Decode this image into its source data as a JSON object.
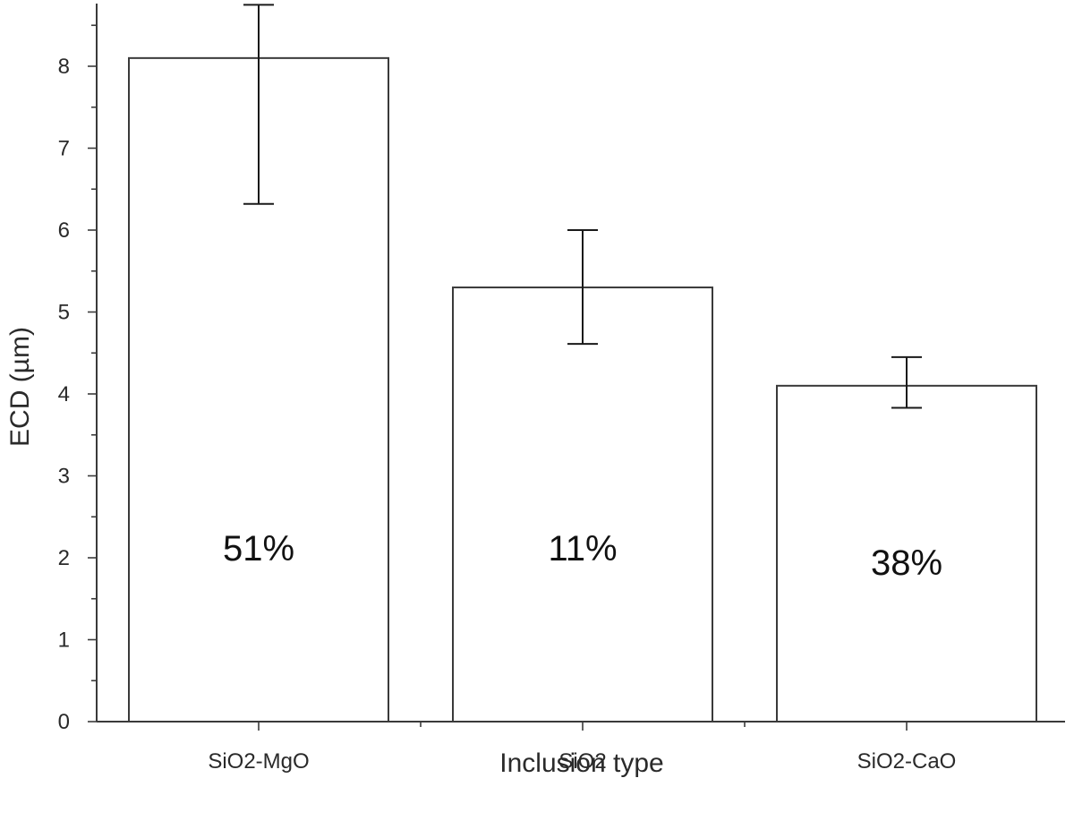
{
  "chart_data": {
    "type": "bar",
    "title": "",
    "xlabel": "Inclusion type",
    "ylabel": "ECD (µm)",
    "categories": [
      "SiO2-MgO",
      "SiO2",
      "SiO2-CaO"
    ],
    "values": [
      8.1,
      5.3,
      4.1
    ],
    "error_low": [
      6.32,
      4.61,
      3.83
    ],
    "error_high": [
      8.75,
      6.0,
      4.45
    ],
    "bar_labels": [
      "51%",
      "11%",
      "38%"
    ],
    "ylim": [
      0,
      8.75
    ],
    "yticks": [
      "0",
      "1",
      "2",
      "3",
      "4",
      "5",
      "6",
      "7",
      "8"
    ],
    "grid": false,
    "legend": "none"
  }
}
